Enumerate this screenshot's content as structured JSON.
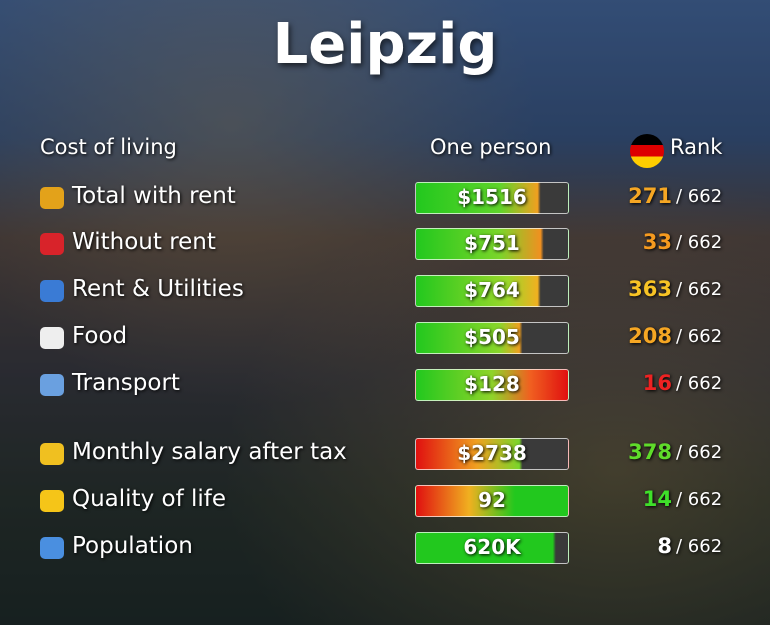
{
  "header": {
    "title": "Leipzig",
    "col_label": "Cost of living",
    "col_value": "One person",
    "col_rank": "Rank"
  },
  "rows": [
    {
      "label": "Total with rent",
      "value": "$1516",
      "rank": "271",
      "total": "/ 662",
      "rank_color": "#f5a623"
    },
    {
      "label": "Without rent",
      "value": "$751",
      "rank": "33",
      "total": "/ 662",
      "rank_color": "#f59a1f"
    },
    {
      "label": "Rent & Utilities",
      "value": "$764",
      "rank": "363",
      "total": "/ 662",
      "rank_color": "#f7c325"
    },
    {
      "label": "Food",
      "value": "$505",
      "rank": "208",
      "total": "/ 662",
      "rank_color": "#f5a623"
    },
    {
      "label": "Transport",
      "value": "$128",
      "rank": "16",
      "total": "/ 662",
      "rank_color": "#ee2222"
    },
    {
      "label": "Monthly salary after tax",
      "value": "$2738",
      "rank": "378",
      "total": "/ 662",
      "rank_color": "#5fdc2a"
    },
    {
      "label": "Quality of life",
      "value": "92",
      "rank": "14",
      "total": "/ 662",
      "rank_color": "#3fe02a"
    },
    {
      "label": "Population",
      "value": "620K",
      "rank": "8",
      "total": "/ 662",
      "rank_color": "#ffffff"
    }
  ]
}
